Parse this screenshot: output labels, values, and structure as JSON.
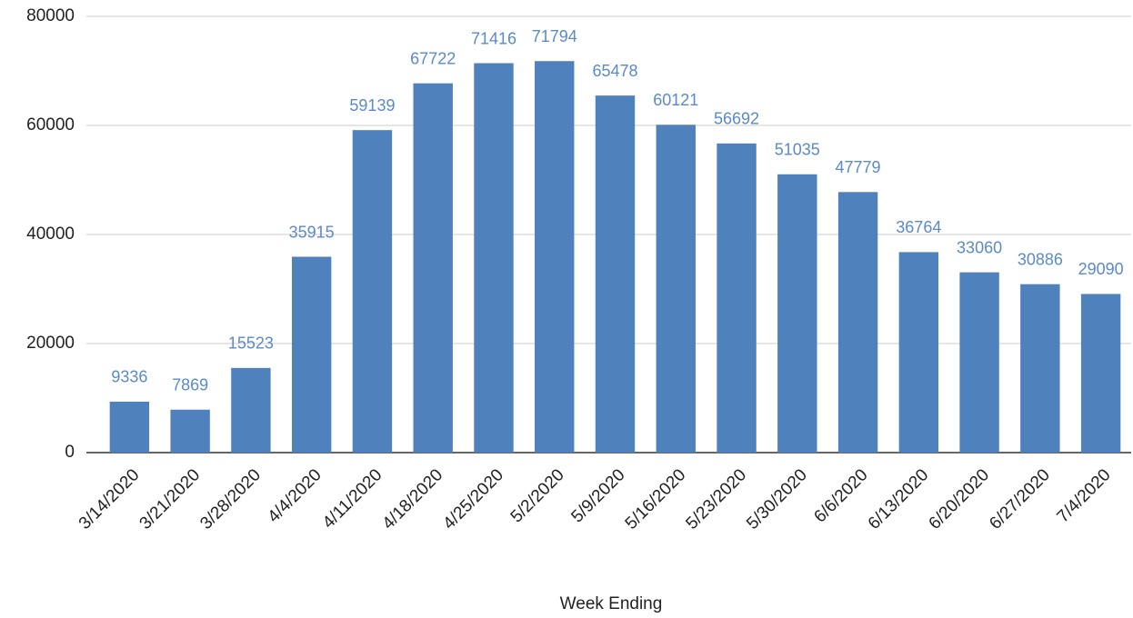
{
  "chart_data": {
    "type": "bar",
    "x_label": "Week Ending",
    "categories": [
      "3/14/2020",
      "3/21/2020",
      "3/28/2020",
      "4/4/2020",
      "4/11/2020",
      "4/18/2020",
      "4/25/2020",
      "5/2/2020",
      "5/9/2020",
      "5/16/2020",
      "5/23/2020",
      "5/30/2020",
      "6/6/2020",
      "6/13/2020",
      "6/20/2020",
      "6/27/2020",
      "7/4/2020"
    ],
    "values": [
      9336,
      7869,
      15523,
      35915,
      59139,
      67722,
      71416,
      71794,
      65478,
      60121,
      56692,
      51035,
      47779,
      36764,
      33060,
      30886,
      29090
    ],
    "color": "#4f81bd",
    "label_color": "#5b8ac9",
    "ylim": [
      0,
      80000
    ],
    "yticks": [
      0,
      20000,
      40000,
      60000,
      80000
    ],
    "grid": true
  }
}
